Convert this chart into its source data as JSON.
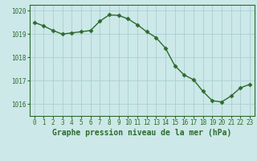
{
  "x": [
    0,
    1,
    2,
    3,
    4,
    5,
    6,
    7,
    8,
    9,
    10,
    11,
    12,
    13,
    14,
    15,
    16,
    17,
    18,
    19,
    20,
    21,
    22,
    23
  ],
  "y": [
    1019.5,
    1019.35,
    1019.15,
    1019.0,
    1019.05,
    1019.1,
    1019.15,
    1019.55,
    1019.82,
    1019.8,
    1019.65,
    1019.4,
    1019.1,
    1018.85,
    1018.4,
    1017.65,
    1017.25,
    1017.05,
    1016.55,
    1016.15,
    1016.1,
    1016.35,
    1016.7,
    1016.85
  ],
  "line_color": "#2d6b2d",
  "marker": "D",
  "marker_size": 2.5,
  "bg_color": "#cce8e8",
  "plot_bg_color": "#cce8e8",
  "grid_color": "#aacfcf",
  "xlabel": "Graphe pression niveau de la mer (hPa)",
  "ylim": [
    1015.5,
    1020.25
  ],
  "yticks": [
    1016,
    1017,
    1018,
    1019,
    1020
  ],
  "xticks": [
    0,
    1,
    2,
    3,
    4,
    5,
    6,
    7,
    8,
    9,
    10,
    11,
    12,
    13,
    14,
    15,
    16,
    17,
    18,
    19,
    20,
    21,
    22,
    23
  ],
  "line_width": 1.0,
  "tick_fontsize": 5.5,
  "label_fontsize": 7.0
}
